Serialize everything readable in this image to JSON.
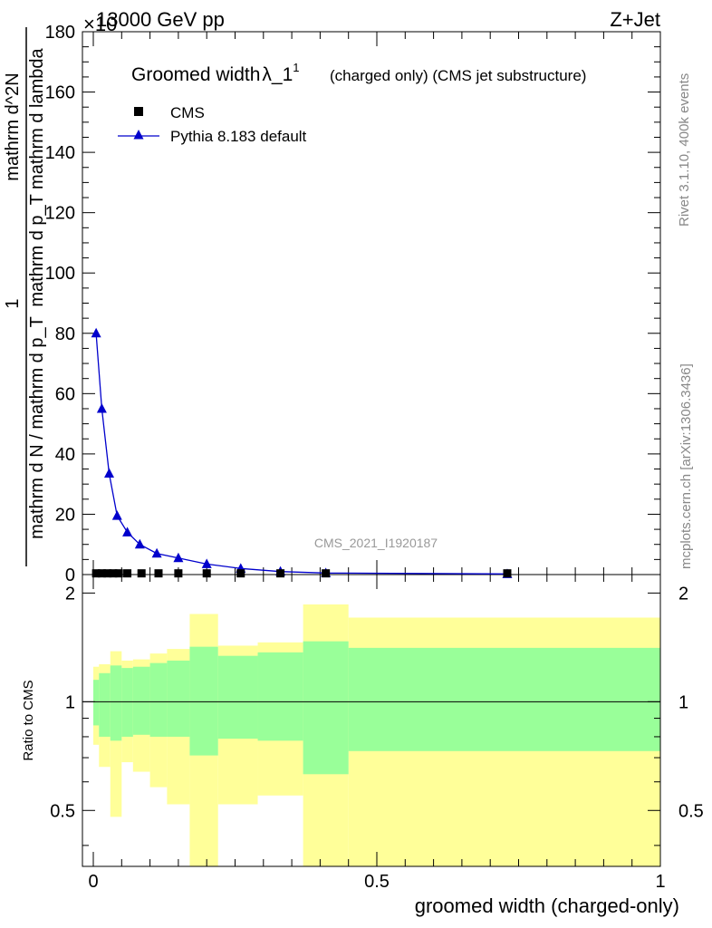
{
  "header": {
    "energy_label": "13000 GeV pp",
    "process_label": "Z+Jet",
    "multiplier_label": "×10"
  },
  "side": {
    "rivet_label": "Rivet 3.1.10,  400k events",
    "mcplots_label": "mcplots.cern.ch [arXiv:1306.3436]"
  },
  "chart_data": [
    {
      "type": "line",
      "title": "Groomed width",
      "title_symbol": "λ_1",
      "title_sup": "1",
      "subtitle": "(charged only) (CMS jet substructure)",
      "watermark": "CMS_2021_I1920187",
      "ylabel_numerator": "1",
      "ylabel_denominator": "mathrm d N / mathrm d p_T",
      "ylabel_frac2_num": "mathrm d^2N",
      "ylabel_frac2_den": "mathrm d p_T mathrm d lambda",
      "ylim": [
        0,
        180
      ],
      "yticks": [
        0,
        20,
        40,
        60,
        80,
        100,
        120,
        140,
        160,
        180
      ],
      "xlim": [
        -0.02,
        1.0
      ],
      "legend": [
        {
          "name": "CMS",
          "marker": "square",
          "color": "#000000"
        },
        {
          "name": "Pythia 8.183 default",
          "marker": "triangle",
          "color": "#0000cc"
        }
      ],
      "series": [
        {
          "name": "CMS",
          "x": [
            0.005,
            0.015,
            0.025,
            0.035,
            0.045,
            0.06,
            0.085,
            0.115,
            0.15,
            0.2,
            0.26,
            0.33,
            0.41,
            0.73
          ],
          "y": [
            0.4,
            0.4,
            0.4,
            0.4,
            0.4,
            0.4,
            0.4,
            0.4,
            0.4,
            0.4,
            0.4,
            0.4,
            0.4,
            0.4
          ]
        },
        {
          "name": "Pythia 8.183 default",
          "x": [
            0.005,
            0.015,
            0.028,
            0.042,
            0.06,
            0.082,
            0.112,
            0.15,
            0.2,
            0.26,
            0.33,
            0.41,
            0.73
          ],
          "y": [
            80,
            55,
            33.5,
            19.5,
            14,
            10,
            7,
            5.5,
            3.5,
            2,
            1,
            0.5,
            0.2
          ]
        }
      ]
    },
    {
      "type": "area",
      "ylabel": "Ratio to CMS",
      "xlabel": "groomed width (charged-only)",
      "ylim": [
        0.35,
        2.25
      ],
      "yticks": [
        0.5,
        1,
        2
      ],
      "xticks": [
        0,
        0.5,
        1
      ],
      "xlim": [
        -0.02,
        1.0
      ],
      "bins": [
        {
          "lo": 0.0,
          "hi": 0.01,
          "g": [
            0.86,
            1.15
          ],
          "y": [
            0.76,
            1.25
          ]
        },
        {
          "lo": 0.01,
          "hi": 0.03,
          "g": [
            0.8,
            1.2
          ],
          "y": [
            0.66,
            1.27
          ]
        },
        {
          "lo": 0.03,
          "hi": 0.05,
          "g": [
            0.78,
            1.26
          ],
          "y": [
            0.48,
            1.38
          ]
        },
        {
          "lo": 0.05,
          "hi": 0.07,
          "g": [
            0.8,
            1.24
          ],
          "y": [
            0.68,
            1.3
          ]
        },
        {
          "lo": 0.07,
          "hi": 0.1,
          "g": [
            0.81,
            1.25
          ],
          "y": [
            0.64,
            1.31
          ]
        },
        {
          "lo": 0.1,
          "hi": 0.13,
          "g": [
            0.8,
            1.28
          ],
          "y": [
            0.58,
            1.36
          ]
        },
        {
          "lo": 0.13,
          "hi": 0.17,
          "g": [
            0.8,
            1.3
          ],
          "y": [
            0.52,
            1.4
          ]
        },
        {
          "lo": 0.17,
          "hi": 0.22,
          "g": [
            0.71,
            1.42
          ],
          "y": [
            0.35,
            1.75
          ]
        },
        {
          "lo": 0.22,
          "hi": 0.29,
          "g": [
            0.79,
            1.34
          ],
          "y": [
            0.52,
            1.43
          ]
        },
        {
          "lo": 0.29,
          "hi": 0.37,
          "g": [
            0.78,
            1.37
          ],
          "y": [
            0.55,
            1.46
          ]
        },
        {
          "lo": 0.37,
          "hi": 0.45,
          "g": [
            0.63,
            1.47
          ],
          "y": [
            0.35,
            1.86
          ]
        },
        {
          "lo": 0.45,
          "hi": 1.0,
          "g": [
            0.73,
            1.41
          ],
          "y": [
            0.35,
            1.71
          ]
        }
      ]
    }
  ]
}
